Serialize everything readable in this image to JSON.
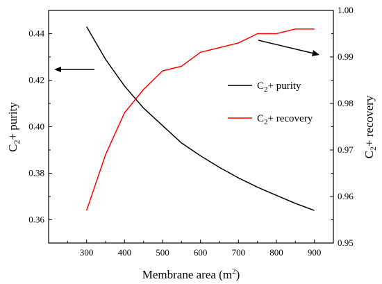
{
  "chart_data": {
    "type": "line",
    "xlabel": "Membrane area (m²)",
    "xlabel_parts": {
      "main": "Membrane area (m",
      "sup": "2",
      "end": ")"
    },
    "ylabel_left_parts": {
      "pre": "C",
      "sub": "2",
      "post": "+ purity"
    },
    "ylabel_right_parts": {
      "pre": "C",
      "sub": "2",
      "post": "+ recovery"
    },
    "xlim": [
      200,
      950
    ],
    "ylim_left": [
      0.35,
      0.45
    ],
    "ylim_right": [
      0.95,
      1.0
    ],
    "x_ticks": [
      300,
      400,
      500,
      600,
      700,
      800,
      900
    ],
    "y_ticks_left": [
      "0.36",
      "0.38",
      "0.40",
      "0.42",
      "0.44"
    ],
    "y_ticks_right": [
      "0.95",
      "0.96",
      "0.97",
      "0.98",
      "0.99",
      "1.00"
    ],
    "series": [
      {
        "name": "C₂+ purity",
        "name_parts": {
          "pre": "C",
          "sub": "2",
          "post": "+ purity"
        },
        "axis": "left",
        "color": "#000000",
        "x": [
          300,
          350,
          400,
          450,
          500,
          550,
          600,
          650,
          700,
          750,
          800,
          850,
          900
        ],
        "y": [
          0.443,
          0.429,
          0.4175,
          0.408,
          0.4005,
          0.393,
          0.3875,
          0.3825,
          0.378,
          0.374,
          0.3705,
          0.367,
          0.364
        ]
      },
      {
        "name": "C₂+ recovery",
        "name_parts": {
          "pre": "C",
          "sub": "2",
          "post": "+ recovery"
        },
        "axis": "right",
        "color": "#ff0000",
        "x": [
          300,
          350,
          400,
          450,
          500,
          550,
          600,
          650,
          700,
          750,
          800,
          850,
          900
        ],
        "y": [
          0.957,
          0.969,
          0.978,
          0.983,
          0.987,
          0.988,
          0.991,
          0.992,
          0.993,
          0.995,
          0.995,
          0.996,
          0.996
        ]
      }
    ],
    "annotations": [
      {
        "type": "arrow",
        "meaning": "purity curve reads on left axis",
        "direction": "left"
      },
      {
        "type": "arrow",
        "meaning": "recovery curve reads on right axis",
        "direction": "right"
      }
    ],
    "legend_position": "center-right",
    "grid": false
  }
}
